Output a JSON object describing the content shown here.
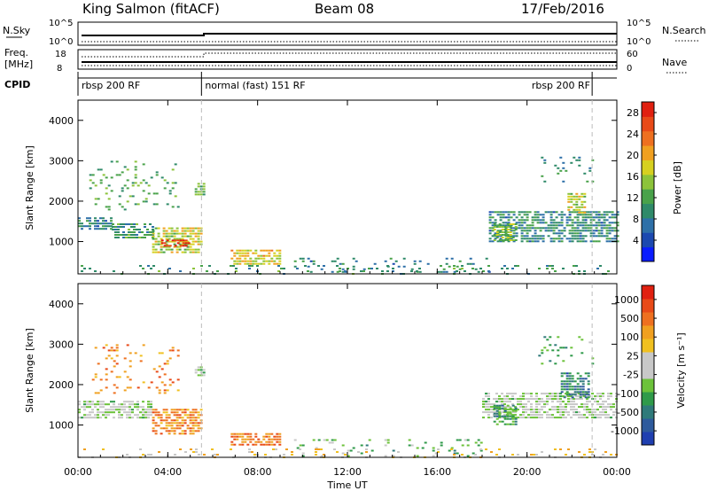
{
  "header": {
    "station": "King Salmon (fitACF)",
    "beam": "Beam 08",
    "date": "17/Feb/2016"
  },
  "status_panels": {
    "nsky": {
      "label": "N.Sky",
      "top": "10^5",
      "bottom": "10^0"
    },
    "nsearch": {
      "label": "N.Search",
      "top": "10^5",
      "bottom": "10^0"
    },
    "freq": {
      "label1": "Freq.",
      "label2": "[MHz]",
      "top": "18",
      "bottom": "8"
    },
    "nave": {
      "label": "Nave",
      "top": "60",
      "bottom": "0"
    },
    "cpid": {
      "label": "CPID"
    },
    "modes": [
      {
        "name": "rbsp 200 RF",
        "start_h": 0.0,
        "end_h": 5.5
      },
      {
        "name": "normal (fast) 151 RF",
        "start_h": 5.5,
        "end_h": 22.9
      },
      {
        "name": "rbsp 200 RF",
        "start_h": 22.9,
        "end_h": 24.0
      }
    ]
  },
  "chart_data": [
    {
      "type": "heatmap",
      "panel": "power",
      "ylabel": "Slant Range [km]",
      "xlabel": "Time UT",
      "xlim": [
        0,
        24
      ],
      "ylim": [
        200,
        4500
      ],
      "xticks": [
        "00:00",
        "04:00",
        "08:00",
        "12:00",
        "16:00",
        "20:00",
        "00:00"
      ],
      "yticks": [
        1000,
        2000,
        3000,
        4000
      ],
      "colorbar": {
        "label": "Power [dB]",
        "ticks": [
          "4",
          "8",
          "12",
          "16",
          "20",
          "24",
          "28"
        ],
        "range": [
          0,
          30
        ],
        "colors": [
          "#0a1cff",
          "#1c49b0",
          "#2e70a8",
          "#2f8a69",
          "#49a24a",
          "#8cc33a",
          "#d6d020",
          "#f0a020",
          "#ee7020",
          "#e84a18",
          "#e02010"
        ]
      },
      "regions": [
        {
          "x0": 0.0,
          "x1": 1.5,
          "y0": 1300,
          "y1": 1600,
          "level": 0.28
        },
        {
          "x0": 1.5,
          "x1": 3.3,
          "y0": 1100,
          "y1": 1450,
          "level": 0.35
        },
        {
          "x0": 3.3,
          "x1": 5.5,
          "y0": 750,
          "y1": 1350,
          "level": 0.55
        },
        {
          "x0": 3.7,
          "x1": 5.0,
          "y0": 880,
          "y1": 1050,
          "level": 0.93
        },
        {
          "x0": 5.2,
          "x1": 5.6,
          "y0": 2150,
          "y1": 2450,
          "level": 0.42
        },
        {
          "x0": 6.8,
          "x1": 9.0,
          "y0": 450,
          "y1": 800,
          "level": 0.62
        },
        {
          "x0": 0.5,
          "x1": 4.5,
          "y0": 1800,
          "y1": 3000,
          "level": 0.4,
          "sparse": true
        },
        {
          "x0": 9.5,
          "x1": 18.5,
          "y0": 250,
          "y1": 600,
          "level": 0.3,
          "sparse": true
        },
        {
          "x0": 18.3,
          "x1": 24.0,
          "y0": 1000,
          "y1": 1750,
          "level": 0.3
        },
        {
          "x0": 18.5,
          "x1": 19.5,
          "y0": 1000,
          "y1": 1450,
          "level": 0.5
        },
        {
          "x0": 21.8,
          "x1": 22.6,
          "y0": 1700,
          "y1": 2200,
          "level": 0.55
        },
        {
          "x0": 20.5,
          "x1": 23.0,
          "y0": 2500,
          "y1": 3100,
          "level": 0.3,
          "sparse": true
        },
        {
          "x0": 0.0,
          "x1": 24.0,
          "y0": 220,
          "y1": 420,
          "level": 0.35,
          "sparse": true
        }
      ]
    },
    {
      "type": "heatmap",
      "panel": "velocity",
      "ylabel": "Slant Range [km]",
      "xlabel": "Time UT",
      "xlim": [
        0,
        24
      ],
      "ylim": [
        200,
        4500
      ],
      "xticks": [
        "00:00",
        "04:00",
        "08:00",
        "12:00",
        "16:00",
        "20:00",
        "00:00"
      ],
      "yticks": [
        1000,
        2000,
        3000,
        4000
      ],
      "colorbar": {
        "label": "Velocity [m s⁻¹]",
        "ticks": [
          "1000",
          "500",
          "100",
          "25",
          "-25",
          "-100",
          "-500",
          "-1000"
        ],
        "colors": [
          "#1f3fb0",
          "#2e5a9c",
          "#2f7a7a",
          "#2f9a4a",
          "#6cc23a",
          "#c8c8c8",
          "#c8c8c8",
          "#f0c020",
          "#f0a020",
          "#ee7020",
          "#e84a18",
          "#e02010"
        ]
      },
      "regions": [
        {
          "x0": 0.0,
          "x1": 3.3,
          "y0": 1200,
          "y1": 1600,
          "level": 0.45
        },
        {
          "x0": 3.3,
          "x1": 5.5,
          "y0": 800,
          "y1": 1400,
          "level": 0.75
        },
        {
          "x0": 5.2,
          "x1": 5.6,
          "y0": 2200,
          "y1": 2450,
          "level": 0.4
        },
        {
          "x0": 6.8,
          "x1": 9.0,
          "y0": 500,
          "y1": 800,
          "level": 0.8
        },
        {
          "x0": 0.5,
          "x1": 4.5,
          "y0": 1800,
          "y1": 3000,
          "level": 0.75,
          "sparse": true
        },
        {
          "x0": 9.5,
          "x1": 18.0,
          "y0": 250,
          "y1": 650,
          "level": 0.35,
          "sparse": true
        },
        {
          "x0": 18.0,
          "x1": 24.0,
          "y0": 1150,
          "y1": 1800,
          "level": 0.45
        },
        {
          "x0": 18.5,
          "x1": 19.5,
          "y0": 1000,
          "y1": 1500,
          "level": 0.28
        },
        {
          "x0": 21.5,
          "x1": 22.8,
          "y0": 1700,
          "y1": 2300,
          "level": 0.2
        },
        {
          "x0": 20.5,
          "x1": 23.0,
          "y0": 2500,
          "y1": 3200,
          "level": 0.3,
          "sparse": true
        },
        {
          "x0": 0.0,
          "x1": 24.0,
          "y0": 220,
          "y1": 420,
          "level": 0.6,
          "sparse": true
        }
      ]
    }
  ]
}
